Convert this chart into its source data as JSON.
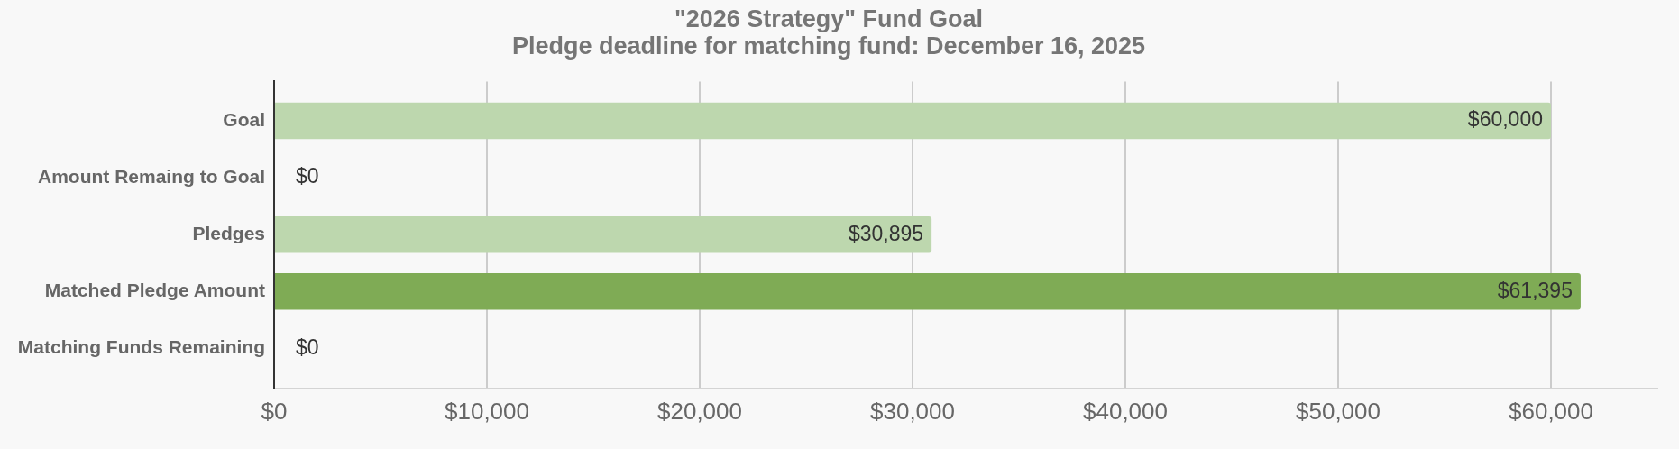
{
  "chart_data": {
    "type": "bar",
    "title": "\"2026 Strategy\" Fund Goal",
    "subtitle": "Pledge deadline for matching fund: December 16, 2025",
    "orientation": "horizontal",
    "categories": [
      "Goal",
      "Amount Remaing to Goal",
      "Pledges",
      "Matched Pledge Amount",
      "Matching Funds Remaining"
    ],
    "values": [
      60000,
      0,
      30895,
      61395,
      0
    ],
    "colors": [
      "#bdd7ae",
      "#bdd7ae",
      "#bdd7ae",
      "#7fab55",
      "#bdd7ae"
    ],
    "value_labels": [
      "$60,000",
      "$0",
      "$30,895",
      "$61,395",
      "$0"
    ],
    "xlim": [
      0,
      65000
    ],
    "xticks": [
      {
        "value": 0,
        "label": "$0"
      },
      {
        "value": 10000,
        "label": "$10,000"
      },
      {
        "value": 20000,
        "label": "$20,000"
      },
      {
        "value": 30000,
        "label": "$30,000"
      },
      {
        "value": 40000,
        "label": "$40,000"
      },
      {
        "value": 50000,
        "label": "$50,000"
      },
      {
        "value": 60000,
        "label": "$60,000"
      }
    ],
    "grid": "x"
  }
}
